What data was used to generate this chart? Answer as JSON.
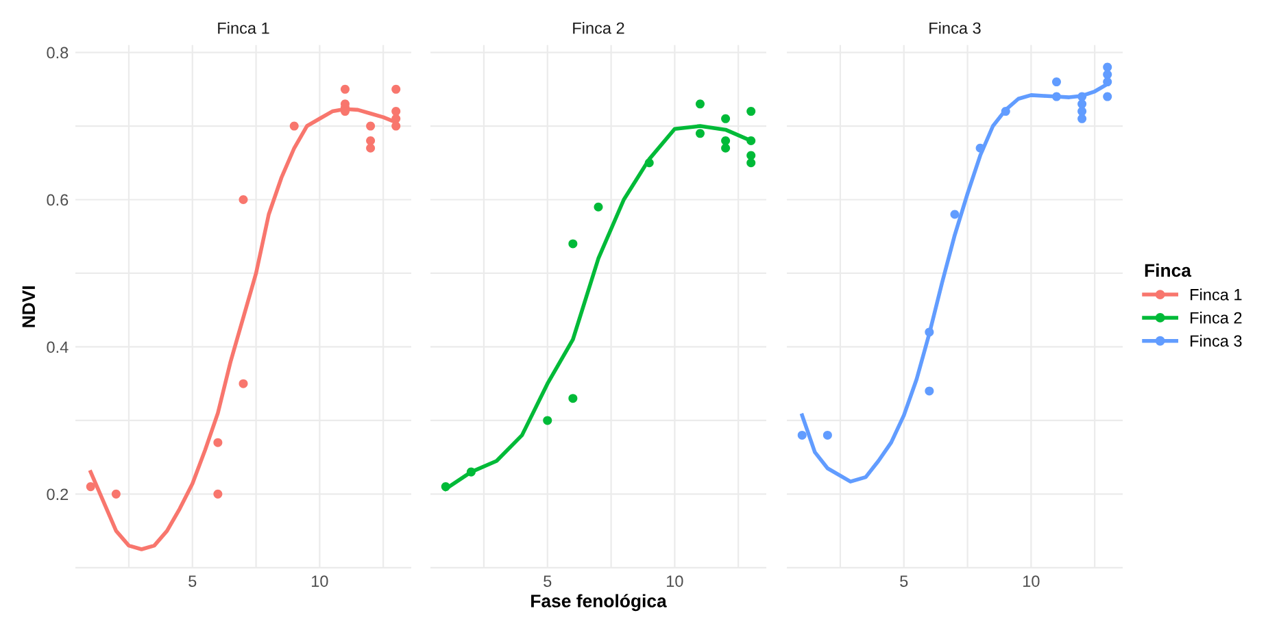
{
  "chart_data": [
    {
      "type": "scatter",
      "title": "Finca 1",
      "ylabel": "NDVI",
      "xlim": [
        0.4,
        13.6
      ],
      "ylim": [
        0.099,
        0.81
      ],
      "xticks": [
        {
          "value": 2.5,
          "label": null
        },
        5,
        {
          "value": 7.5,
          "label": null
        },
        10,
        {
          "value": 12.5,
          "label": null
        }
      ],
      "yticks": [
        {
          "value": 0.1,
          "label": null
        },
        0.2,
        {
          "value": 0.3,
          "label": null
        },
        0.4,
        {
          "value": 0.5,
          "label": null
        },
        0.6,
        {
          "value": 0.7,
          "label": null
        },
        0.8
      ],
      "grid": true,
      "series": [
        {
          "name": "Finca 1",
          "marker": "circle",
          "color": "#f8766d",
          "x": [
            1,
            2,
            6,
            6,
            7,
            7,
            9,
            11,
            11,
            11,
            11,
            12,
            12,
            12,
            13,
            13,
            13,
            13
          ],
          "values": [
            0.21,
            0.2,
            0.27,
            0.2,
            0.6,
            0.35,
            0.7,
            0.75,
            0.73,
            0.725,
            0.72,
            0.7,
            0.68,
            0.67,
            0.75,
            0.72,
            0.71,
            0.7
          ]
        },
        {
          "type": "line",
          "color": "#f8766d",
          "line_style": "solid",
          "x": [
            1,
            1.5,
            2,
            2.5,
            3,
            3.5,
            4,
            4.5,
            5,
            5.5,
            6,
            6.5,
            7,
            7.5,
            8,
            8.5,
            9,
            9.5,
            10,
            10.5,
            11,
            11.5,
            12,
            12.5,
            13
          ],
          "values": [
            0.23,
            0.19,
            0.15,
            0.13,
            0.125,
            0.13,
            0.15,
            0.18,
            0.214,
            0.26,
            0.31,
            0.38,
            0.44,
            0.5,
            0.58,
            0.63,
            0.67,
            0.7,
            0.71,
            0.72,
            0.723,
            0.722,
            0.717,
            0.712,
            0.705
          ]
        }
      ]
    },
    {
      "type": "scatter",
      "title": "Finca 2",
      "xlabel": "Fase fenológica",
      "xlim": [
        0.4,
        13.6
      ],
      "ylim": [
        0.099,
        0.81
      ],
      "xticks": [
        {
          "value": 2.5,
          "label": null
        },
        5,
        {
          "value": 7.5,
          "label": null
        },
        10,
        {
          "value": 12.5,
          "label": null
        }
      ],
      "yticks": [
        {
          "value": 0.1,
          "label": null
        },
        {
          "value": 0.2,
          "label": null
        },
        {
          "value": 0.3,
          "label": null
        },
        {
          "value": 0.4,
          "label": null
        },
        {
          "value": 0.5,
          "label": null
        },
        {
          "value": 0.6,
          "label": null
        },
        {
          "value": 0.7,
          "label": null
        },
        {
          "value": 0.8,
          "label": null
        }
      ],
      "grid": true,
      "tick_labels": "x",
      "series": [
        {
          "name": "Finca 2",
          "marker": "circle",
          "color": "#00ba38",
          "x": [
            1,
            2,
            5,
            6,
            6,
            7,
            9,
            11,
            11,
            12,
            12,
            12,
            13,
            13,
            13,
            13
          ],
          "values": [
            0.21,
            0.23,
            0.3,
            0.54,
            0.33,
            0.59,
            0.65,
            0.73,
            0.69,
            0.71,
            0.68,
            0.67,
            0.72,
            0.68,
            0.66,
            0.65
          ]
        },
        {
          "type": "line",
          "color": "#00ba38",
          "line_style": "solid",
          "x": [
            1,
            2,
            3,
            4,
            5,
            6,
            7,
            8,
            9,
            10,
            11,
            12,
            13
          ],
          "values": [
            0.207,
            0.23,
            0.245,
            0.28,
            0.35,
            0.41,
            0.52,
            0.6,
            0.655,
            0.696,
            0.7,
            0.695,
            0.68
          ]
        }
      ]
    },
    {
      "type": "scatter",
      "title": "Finca 3",
      "legend_title": "Finca",
      "legend": "right",
      "xlim": [
        0.4,
        13.6
      ],
      "ylim": [
        0.099,
        0.81
      ],
      "xticks": [
        {
          "value": 2.5,
          "label": null
        },
        5,
        {
          "value": 7.5,
          "label": null
        },
        10,
        {
          "value": 12.5,
          "label": null
        }
      ],
      "yticks": [
        {
          "value": 0.1,
          "label": null
        },
        {
          "value": 0.2,
          "label": null
        },
        {
          "value": 0.3,
          "label": null
        },
        {
          "value": 0.4,
          "label": null
        },
        {
          "value": 0.5,
          "label": null
        },
        {
          "value": 0.6,
          "label": null
        },
        {
          "value": 0.7,
          "label": null
        },
        {
          "value": 0.8,
          "label": null
        }
      ],
      "grid": true,
      "tick_labels": "x",
      "series": [
        {
          "name": "Finca 3",
          "marker": "circle",
          "color": "#619cff",
          "x": [
            1,
            2,
            6,
            6,
            7,
            8,
            9,
            11,
            11,
            12,
            12,
            12,
            12,
            13,
            13,
            13,
            13
          ],
          "values": [
            0.28,
            0.28,
            0.42,
            0.34,
            0.58,
            0.67,
            0.72,
            0.76,
            0.74,
            0.74,
            0.73,
            0.72,
            0.71,
            0.78,
            0.77,
            0.76,
            0.74
          ]
        },
        {
          "type": "line",
          "color": "#619cff",
          "line_style": "solid",
          "x": [
            1,
            1.5,
            2,
            2.9,
            3.5,
            4,
            4.5,
            5,
            5.5,
            6,
            6.5,
            7,
            7.5,
            8,
            8.5,
            9,
            9.5,
            10,
            10.5,
            11,
            11.5,
            12,
            12.5,
            13
          ],
          "values": [
            0.307,
            0.257,
            0.235,
            0.217,
            0.223,
            0.245,
            0.27,
            0.307,
            0.356,
            0.418,
            0.487,
            0.552,
            0.608,
            0.66,
            0.7,
            0.722,
            0.737,
            0.742,
            0.741,
            0.74,
            0.739,
            0.741,
            0.747,
            0.757
          ]
        }
      ]
    }
  ]
}
